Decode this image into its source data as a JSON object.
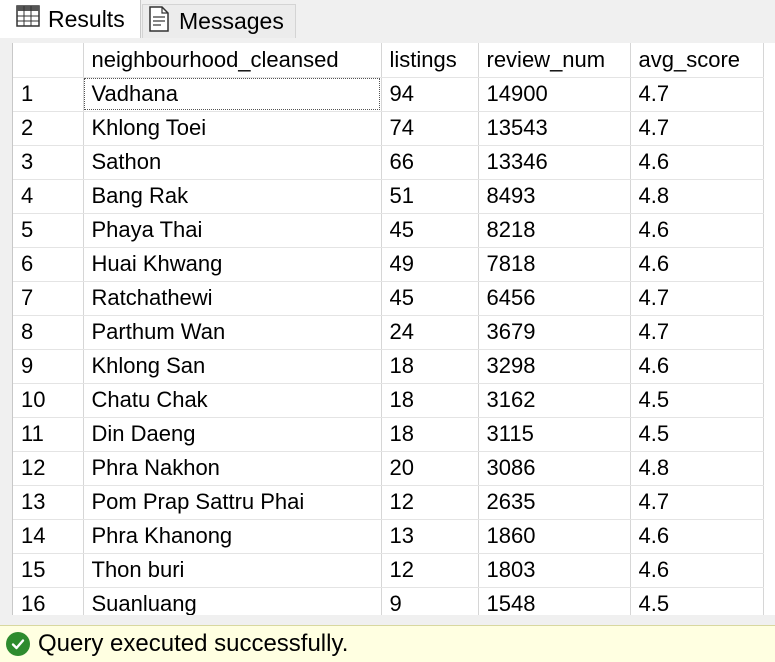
{
  "tabs": [
    {
      "label": "Results",
      "icon": "grid-icon"
    },
    {
      "label": "Messages",
      "icon": "messages-icon"
    }
  ],
  "grid": {
    "columns": [
      "",
      "neighbourhood_cleansed",
      "listings",
      "review_num",
      "avg_score"
    ],
    "rows": [
      [
        "1",
        "Vadhana",
        "94",
        "14900",
        "4.7"
      ],
      [
        "2",
        "Khlong Toei",
        "74",
        "13543",
        "4.7"
      ],
      [
        "3",
        "Sathon",
        "66",
        "13346",
        "4.6"
      ],
      [
        "4",
        "Bang Rak",
        "51",
        "8493",
        "4.8"
      ],
      [
        "5",
        "Phaya Thai",
        "45",
        "8218",
        "4.6"
      ],
      [
        "6",
        "Huai Khwang",
        "49",
        "7818",
        "4.6"
      ],
      [
        "7",
        "Ratchathewi",
        "45",
        "6456",
        "4.7"
      ],
      [
        "8",
        "Parthum Wan",
        "24",
        "3679",
        "4.7"
      ],
      [
        "9",
        "Khlong San",
        "18",
        "3298",
        "4.6"
      ],
      [
        "10",
        "Chatu Chak",
        "18",
        "3162",
        "4.5"
      ],
      [
        "11",
        "Din Daeng",
        "18",
        "3115",
        "4.5"
      ],
      [
        "12",
        "Phra Nakhon",
        "20",
        "3086",
        "4.8"
      ],
      [
        "13",
        "Pom Prap Sattru Phai",
        "12",
        "2635",
        "4.7"
      ],
      [
        "14",
        "Phra Khanong",
        "13",
        "1860",
        "4.6"
      ],
      [
        "15",
        "Thon buri",
        "12",
        "1803",
        "4.6"
      ],
      [
        "16",
        "Suanluang",
        "9",
        "1548",
        "4.5"
      ]
    ]
  },
  "status": {
    "message": "Query executed successfully.",
    "icon": "success-check-icon",
    "background": "#ffffe1",
    "icon_color": "#2e8b2e"
  }
}
